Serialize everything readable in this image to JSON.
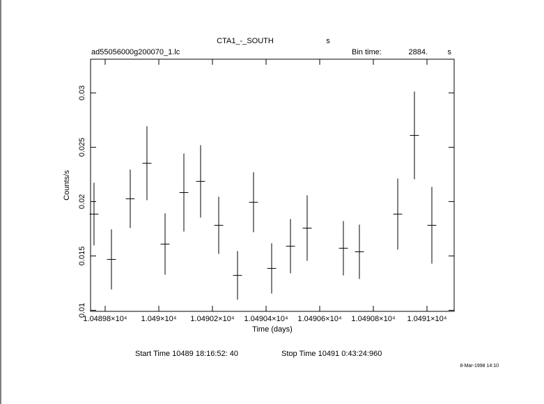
{
  "chart_data": {
    "type": "errorbar",
    "title": "CTA1_-_SOUTH",
    "title_unit": "s",
    "file_name": "ad55056000g200070_1.lc",
    "bin_time_label": "Bin time:",
    "bin_time": "2884.",
    "bin_time_unit": "s",
    "x_label": "Time (days)",
    "y_label": "Counts/s",
    "start_time": "Start Time 10489 18:16:52: 40",
    "stop_time": "Stop Time 10491  0:43:24:960",
    "timestamp": "8-Mar-1998 14:10",
    "color": "#000000",
    "xlim": [
      10489.7455,
      10491.1013
    ],
    "ylim": [
      0.0099,
      0.0331
    ],
    "xticks": [
      {
        "value": 10489.8,
        "label": "1.04898×10⁴"
      },
      {
        "value": 10490.0,
        "label": "1.049×10⁴"
      },
      {
        "value": 10490.2,
        "label": "1.04902×10⁴"
      },
      {
        "value": 10490.4,
        "label": "1.04904×10⁴"
      },
      {
        "value": 10490.6,
        "label": "1.04906×10⁴"
      },
      {
        "value": 10490.8,
        "label": "1.04908×10⁴"
      },
      {
        "value": 10491.0,
        "label": "1.0491×10⁴"
      }
    ],
    "yticks": [
      0.01,
      0.015,
      0.02,
      0.025,
      0.03
    ],
    "x": [
      10489.7584,
      10489.8234,
      10489.8935,
      10489.9558,
      10490.0234,
      10490.0935,
      10490.1558,
      10490.2234,
      10490.2935,
      10490.3532,
      10490.4208,
      10490.4909,
      10490.5532,
      10490.6883,
      10490.748,
      10490.8909,
      10490.9532,
      10491.0182
    ],
    "xerr": [
      0.0167,
      0.0167,
      0.0167,
      0.0167,
      0.0167,
      0.0167,
      0.0167,
      0.0167,
      0.0167,
      0.0167,
      0.0167,
      0.0167,
      0.0167,
      0.0167,
      0.0167,
      0.0167,
      0.0167,
      0.0167
    ],
    "values": [
      0.01885,
      0.01468,
      0.02026,
      0.02353,
      0.01609,
      0.02083,
      0.02186,
      0.01782,
      0.01321,
      0.01994,
      0.01385,
      0.0159,
      0.01756,
      0.01571,
      0.01538,
      0.01885,
      0.02609,
      0.01782
    ],
    "yerr": [
      0.00288,
      0.00276,
      0.00269,
      0.0034,
      0.00282,
      0.00359,
      0.00333,
      0.00263,
      0.00224,
      0.00276,
      0.00231,
      0.0025,
      0.00301,
      0.0025,
      0.0025,
      0.00327,
      0.00404,
      0.00353
    ]
  }
}
